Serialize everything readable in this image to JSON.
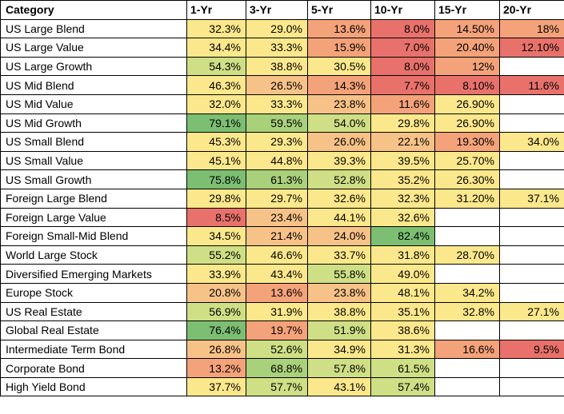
{
  "headers": [
    "Category",
    "1-Yr",
    "3-Yr",
    "5-Yr",
    "10-Yr",
    "15-Yr",
    "20-Yr"
  ],
  "colors": {
    "red": "#e8726b",
    "orange": "#f4a27a",
    "light_orange": "#f7c288",
    "yellow": "#fce88c",
    "light_green": "#cfdf85",
    "green": "#a9d07b",
    "dark_green": "#7cbe72",
    "blank": "#ffffff"
  },
  "rows": [
    {
      "category": "US Large Blend",
      "values": [
        "32.3%",
        "29.0%",
        "13.6%",
        "8.0%",
        "14.50%",
        "18%"
      ],
      "shades": [
        "yellow",
        "yellow",
        "orange",
        "red",
        "orange",
        "orange"
      ]
    },
    {
      "category": "US Large Value",
      "values": [
        "34.4%",
        "33.3%",
        "15.9%",
        "7.0%",
        "20.40%",
        "12.10%"
      ],
      "shades": [
        "yellow",
        "yellow",
        "orange",
        "red",
        "orange",
        "red"
      ]
    },
    {
      "category": "US Large Growth",
      "values": [
        "54.3%",
        "38.8%",
        "30.5%",
        "8.0%",
        "12%",
        ""
      ],
      "shades": [
        "light_green",
        "yellow",
        "yellow",
        "red",
        "orange",
        "blank"
      ]
    },
    {
      "category": "US Mid Blend",
      "values": [
        "46.3%",
        "26.5%",
        "14.3%",
        "7.7%",
        "8.10%",
        "11.6%"
      ],
      "shades": [
        "yellow",
        "light_orange",
        "orange",
        "red",
        "red",
        "red"
      ]
    },
    {
      "category": "US Mid Value",
      "values": [
        "32.0%",
        "33.3%",
        "23.8%",
        "11.6%",
        "26.90%",
        ""
      ],
      "shades": [
        "yellow",
        "yellow",
        "light_orange",
        "orange",
        "yellow",
        "blank"
      ]
    },
    {
      "category": "US Mid Growth",
      "values": [
        "79.1%",
        "59.5%",
        "54.0%",
        "29.8%",
        "26.90%",
        ""
      ],
      "shades": [
        "dark_green",
        "green",
        "light_green",
        "yellow",
        "yellow",
        "blank"
      ]
    },
    {
      "category": "US Small Blend",
      "values": [
        "45.3%",
        "29.3%",
        "26.0%",
        "22.1%",
        "19.30%",
        "34.0%"
      ],
      "shades": [
        "yellow",
        "yellow",
        "light_orange",
        "light_orange",
        "orange",
        "yellow"
      ]
    },
    {
      "category": "US Small Value",
      "values": [
        "45.1%",
        "44.8%",
        "39.3%",
        "39.5%",
        "25.70%",
        ""
      ],
      "shades": [
        "yellow",
        "yellow",
        "yellow",
        "yellow",
        "yellow",
        "blank"
      ]
    },
    {
      "category": "US Small Growth",
      "values": [
        "75.8%",
        "61.3%",
        "52.8%",
        "35.2%",
        "26.30%",
        ""
      ],
      "shades": [
        "dark_green",
        "green",
        "light_green",
        "yellow",
        "yellow",
        "blank"
      ]
    },
    {
      "category": "Foreign Large Blend",
      "values": [
        "29.8%",
        "29.7%",
        "32.6%",
        "32.3%",
        "31.20%",
        "37.1%"
      ],
      "shades": [
        "yellow",
        "yellow",
        "yellow",
        "yellow",
        "yellow",
        "yellow"
      ]
    },
    {
      "category": "Foreign Large Value",
      "values": [
        "8.5%",
        "23.4%",
        "44.1%",
        "32.6%",
        "",
        ""
      ],
      "shades": [
        "red",
        "light_orange",
        "yellow",
        "yellow",
        "blank",
        "blank"
      ]
    },
    {
      "category": "Foreign Small-Mid Blend",
      "values": [
        "34.5%",
        "21.4%",
        "24.0%",
        "82.4%",
        "",
        ""
      ],
      "shades": [
        "yellow",
        "light_orange",
        "light_orange",
        "dark_green",
        "blank",
        "blank"
      ]
    },
    {
      "category": "World Large Stock",
      "values": [
        "55.2%",
        "46.6%",
        "33.7%",
        "31.8%",
        "28.70%",
        ""
      ],
      "shades": [
        "light_green",
        "yellow",
        "yellow",
        "yellow",
        "yellow",
        "blank"
      ]
    },
    {
      "category": "Diversified Emerging Markets",
      "values": [
        "33.9%",
        "43.4%",
        "55.8%",
        "49.0%",
        "",
        ""
      ],
      "shades": [
        "yellow",
        "yellow",
        "light_green",
        "yellow",
        "blank",
        "blank"
      ]
    },
    {
      "category": "Europe Stock",
      "values": [
        "20.8%",
        "13.6%",
        "23.8%",
        "48.1%",
        "34.2%",
        ""
      ],
      "shades": [
        "light_orange",
        "orange",
        "light_orange",
        "yellow",
        "yellow",
        "blank"
      ]
    },
    {
      "category": "US Real Estate",
      "values": [
        "56.9%",
        "31.9%",
        "38.8%",
        "35.1%",
        "32.8%",
        "27.1%"
      ],
      "shades": [
        "light_green",
        "yellow",
        "yellow",
        "yellow",
        "yellow",
        "yellow"
      ]
    },
    {
      "category": "Global Real Estate",
      "values": [
        "76.4%",
        "19.7%",
        "51.9%",
        "38.6%",
        "",
        ""
      ],
      "shades": [
        "dark_green",
        "orange",
        "light_green",
        "yellow",
        "blank",
        "blank"
      ]
    },
    {
      "category": "Intermediate Term Bond",
      "values": [
        "26.8%",
        "52.6%",
        "34.9%",
        "31.3%",
        "16.6%",
        "9.5%"
      ],
      "shades": [
        "light_orange",
        "light_green",
        "yellow",
        "yellow",
        "orange",
        "red"
      ]
    },
    {
      "category": "Corporate Bond",
      "values": [
        "13.2%",
        "68.8%",
        "57.8%",
        "61.5%",
        "",
        ""
      ],
      "shades": [
        "orange",
        "green",
        "light_green",
        "light_green",
        "blank",
        "blank"
      ]
    },
    {
      "category": "High Yield Bond",
      "values": [
        "37.7%",
        "57.7%",
        "43.1%",
        "57.4%",
        "",
        ""
      ],
      "shades": [
        "yellow",
        "light_green",
        "yellow",
        "light_green",
        "blank",
        "blank"
      ]
    }
  ]
}
